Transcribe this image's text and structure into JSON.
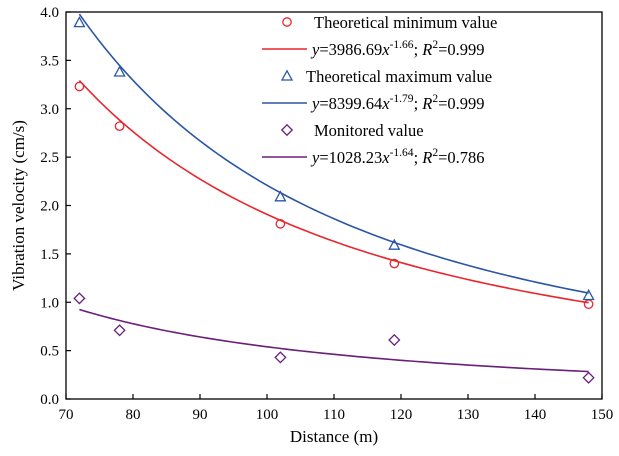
{
  "chart_data": {
    "type": "scatter",
    "xlabel": "Distance (m)",
    "ylabel": "Vibration velocity (cm/s)",
    "xlim": [
      70,
      150
    ],
    "ylim": [
      0.0,
      4.0
    ],
    "x_ticks": [
      "70",
      "80",
      "90",
      "100",
      "110",
      "120",
      "130",
      "140",
      "150"
    ],
    "y_ticks": [
      "0.0",
      "0.5",
      "1.0",
      "1.5",
      "2.0",
      "2.5",
      "3.0",
      "3.5",
      "4.0"
    ],
    "grid": false,
    "legend_position": "top-right",
    "series": [
      {
        "name": "Theoretical minimum value",
        "marker": "circle",
        "color": "#e8262d",
        "x": [
          72,
          78,
          102,
          119,
          148
        ],
        "y": [
          3.23,
          2.82,
          1.81,
          1.4,
          0.98
        ],
        "fit": {
          "a": 3986.69,
          "b": -1.66,
          "r2_label": "0.999",
          "exp_label": "-1.66",
          "coef_label": "3986.69"
        }
      },
      {
        "name": "Theoretical maximum value",
        "marker": "triangle",
        "color": "#2a56a6",
        "x": [
          72,
          78,
          102,
          119,
          148
        ],
        "y": [
          3.89,
          3.38,
          2.09,
          1.59,
          1.07
        ],
        "fit": {
          "a": 8399.64,
          "b": -1.79,
          "r2_label": "0.999",
          "exp_label": "-1.79",
          "coef_label": "8399.64"
        }
      },
      {
        "name": "Monitored value",
        "marker": "diamond",
        "color": "#6a1f7a",
        "x": [
          72,
          78,
          102,
          119,
          148
        ],
        "y": [
          1.04,
          0.71,
          0.43,
          0.61,
          0.22
        ],
        "fit": {
          "a": 1028.23,
          "b": -1.64,
          "r2_label": "0.786",
          "exp_label": "-1.64",
          "coef_label": "1028.23"
        }
      }
    ]
  }
}
